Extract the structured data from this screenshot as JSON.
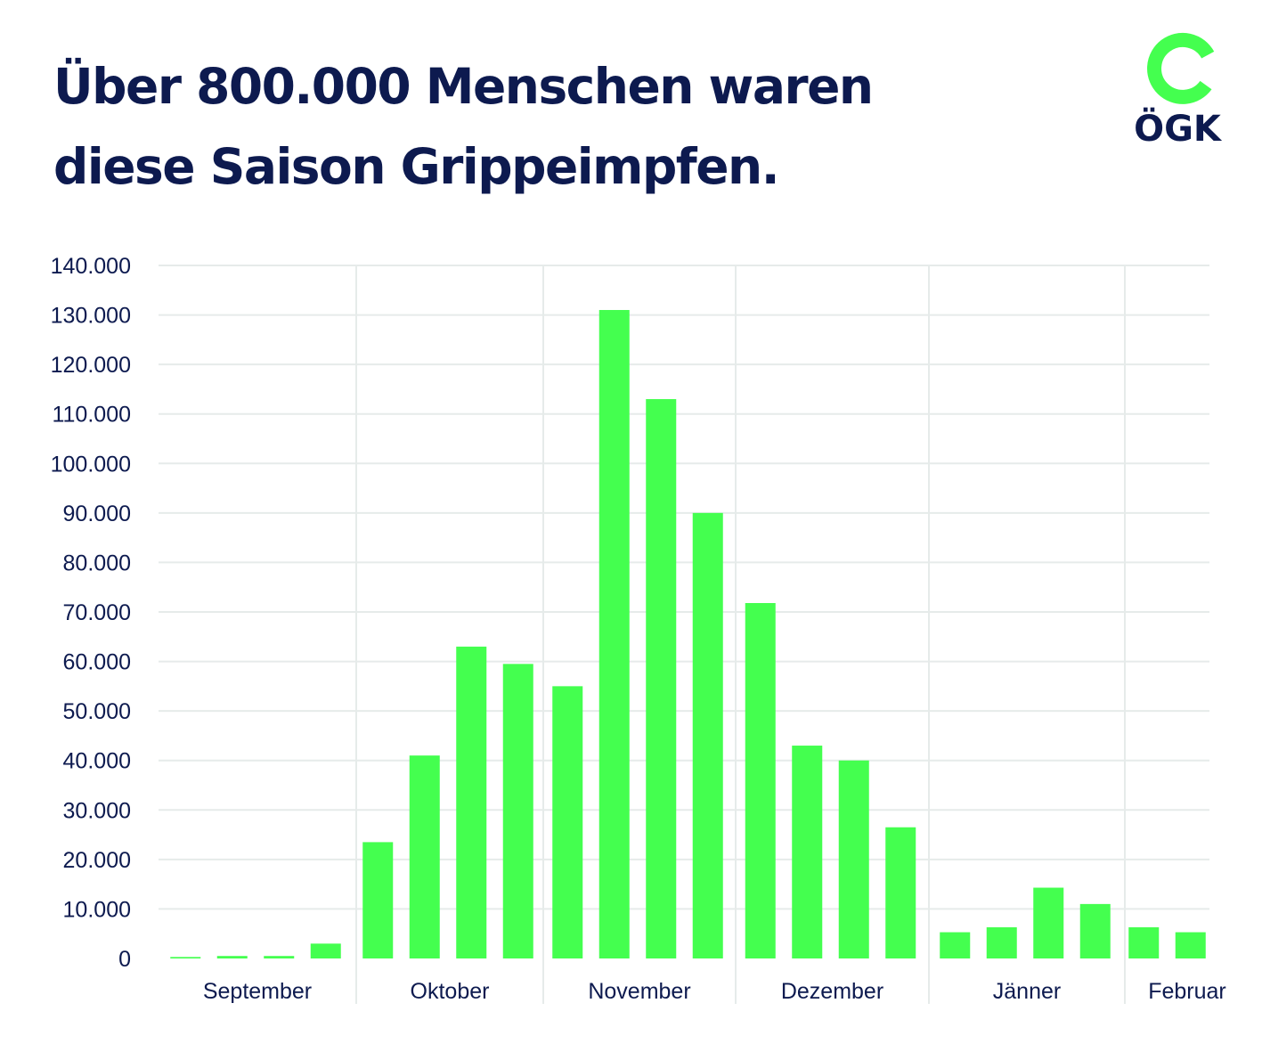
{
  "header": {
    "title_line1": "Über 800.000 Menschen waren",
    "title_line2": "diese Saison Grippeimpfen."
  },
  "logo": {
    "text": "ÖGK",
    "icon": "oegk-g-ring-icon",
    "color": "#44ff4f"
  },
  "chart_data": {
    "type": "bar",
    "title": "Über 800.000 Menschen waren diese Saison Grippeimpfen.",
    "xlabel": "",
    "ylabel": "",
    "ylim": [
      0,
      140000
    ],
    "yticks": [
      "0",
      "10.000",
      "20.000",
      "30.000",
      "40.000",
      "50.000",
      "60.000",
      "70.000",
      "80.000",
      "90.000",
      "100.000",
      "110.000",
      "120.000",
      "130.000",
      "140.000"
    ],
    "bar_color": "#44ff4f",
    "grid": true,
    "months": [
      {
        "name": "September",
        "values": [
          300,
          500,
          500,
          3000
        ]
      },
      {
        "name": "Oktober",
        "values": [
          23500,
          41000,
          63000,
          59500
        ]
      },
      {
        "name": "November",
        "values": [
          55000,
          131000,
          113000,
          90000
        ]
      },
      {
        "name": "Dezember",
        "values": [
          71800,
          43000,
          40000,
          26500
        ]
      },
      {
        "name": "Jänner",
        "values": [
          5300,
          6300,
          14300,
          11000
        ]
      },
      {
        "name": "Februar",
        "values": [
          6300,
          5300
        ]
      }
    ]
  }
}
